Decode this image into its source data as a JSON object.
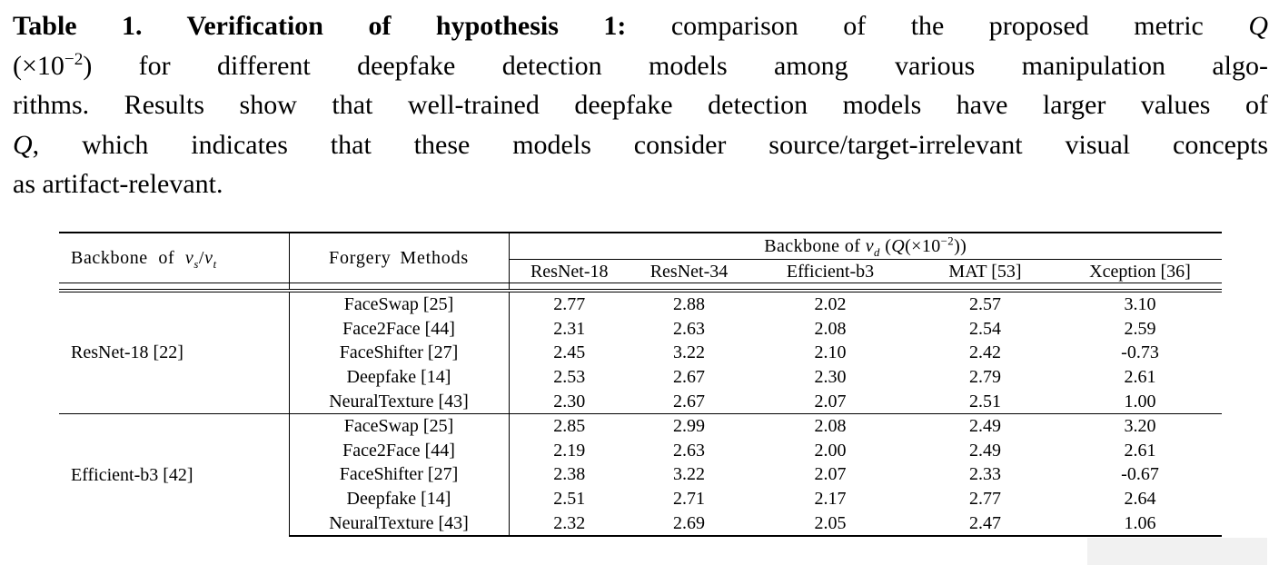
{
  "caption": {
    "lines": [
      "<b>Table 1. Verification of hypothesis 1:</b> comparison of the proposed metric <i>Q</i>",
      "(×10<sup>−2</sup>) for different deepfake detection models among various manipulation algo-",
      "rithms. Results show that well-trained deepfake detection models have larger values of",
      "<i>Q</i>, which indicates that these models consider source/target-irrelevant visual concepts",
      "as artifact-relevant."
    ]
  },
  "table": {
    "col1_header_html": "Backbone of <i>v<sub>s</sub></i>/<i>v<sub>t</sub></i>",
    "col2_header": "Forgery Methods",
    "group_header_html": "Backbone of <i>v<sub>d</sub></i> (<i>Q</i>(×10<sup>−2</sup>))",
    "detector_columns": [
      "ResNet-18",
      "ResNet-34",
      "Efficient-b3",
      "MAT [53]",
      "Xception [36]"
    ],
    "groups": [
      {
        "backbone": "ResNet-18 [22]",
        "rows": [
          {
            "method": "FaceSwap [25]",
            "values": [
              "2.77",
              "2.88",
              "2.02",
              "2.57",
              "3.10"
            ]
          },
          {
            "method": "Face2Face [44]",
            "values": [
              "2.31",
              "2.63",
              "2.08",
              "2.54",
              "2.59"
            ]
          },
          {
            "method": "FaceShifter [27]",
            "values": [
              "2.45",
              "3.22",
              "2.10",
              "2.42",
              "-0.73"
            ]
          },
          {
            "method": "Deepfake [14]",
            "values": [
              "2.53",
              "2.67",
              "2.30",
              "2.79",
              "2.61"
            ]
          },
          {
            "method": "NeuralTexture [43]",
            "values": [
              "2.30",
              "2.67",
              "2.07",
              "2.51",
              "1.00"
            ]
          }
        ]
      },
      {
        "backbone": "Efficient-b3 [42]",
        "rows": [
          {
            "method": "FaceSwap [25]",
            "values": [
              "2.85",
              "2.99",
              "2.08",
              "2.49",
              "3.20"
            ]
          },
          {
            "method": "Face2Face [44]",
            "values": [
              "2.19",
              "2.63",
              "2.00",
              "2.49",
              "2.61"
            ]
          },
          {
            "method": "FaceShifter [27]",
            "values": [
              "2.38",
              "3.22",
              "2.07",
              "2.33",
              "-0.67"
            ]
          },
          {
            "method": "Deepfake [14]",
            "values": [
              "2.51",
              "2.71",
              "2.17",
              "2.77",
              "2.64"
            ]
          },
          {
            "method": "NeuralTexture [43]",
            "values": [
              "2.32",
              "2.69",
              "2.05",
              "2.47",
              "1.06"
            ]
          }
        ]
      }
    ]
  },
  "colors": {
    "text": "#000000",
    "rules": "#000000",
    "gray_box": "#f1f1f1",
    "background": "#ffffff"
  }
}
